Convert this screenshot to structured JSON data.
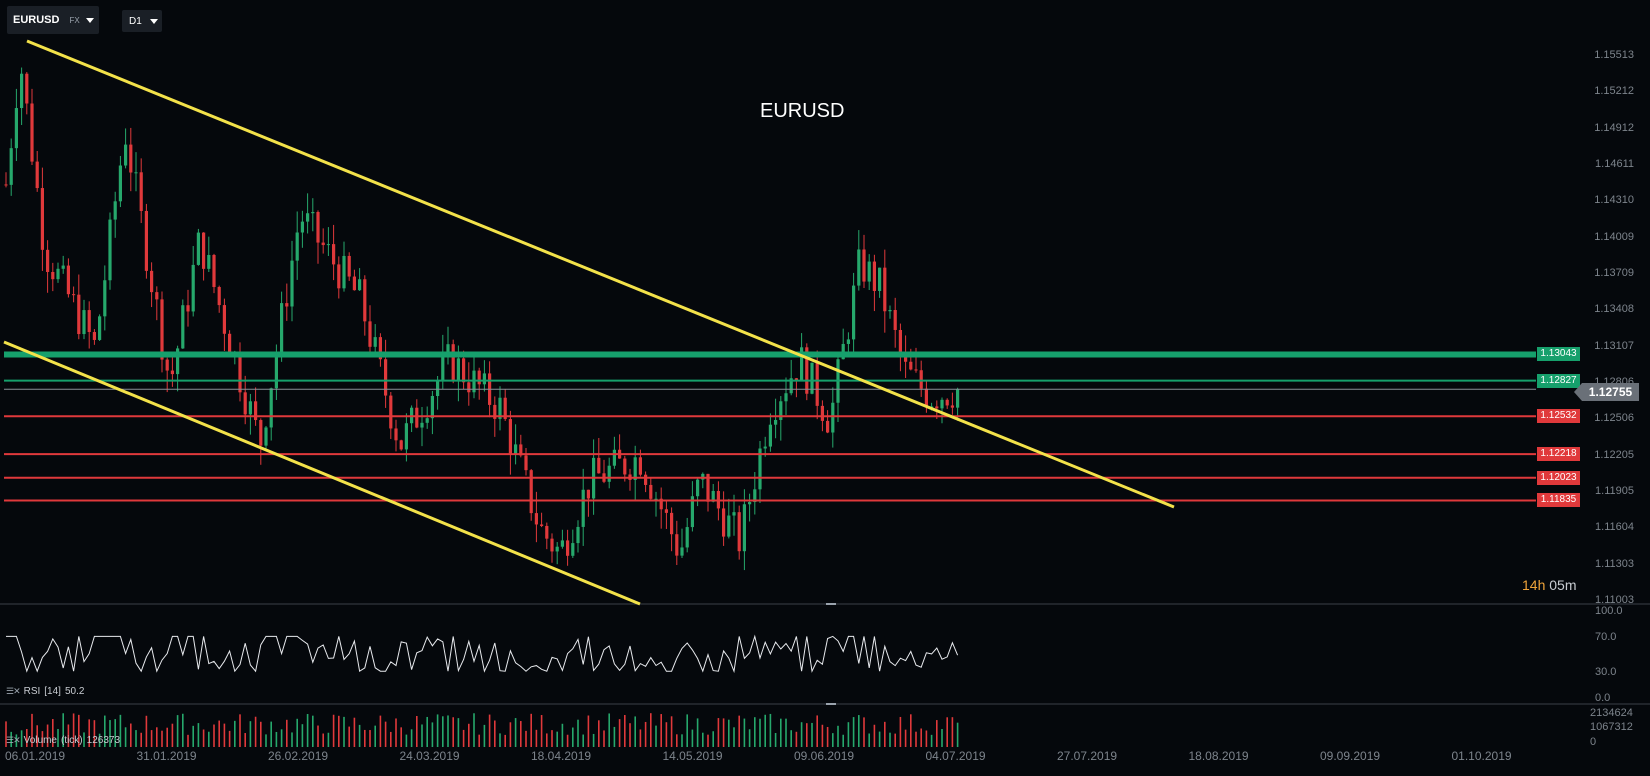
{
  "toolbar": {
    "symbol": "EURUSD",
    "market": "FX",
    "timeframe": "D1"
  },
  "title": "EURUSD",
  "price_axis": [
    "1.15513",
    "1.15212",
    "1.14912",
    "1.14611",
    "1.14310",
    "1.14009",
    "1.13709",
    "1.13408",
    "1.13107",
    "1.12806",
    "1.12506",
    "1.12205",
    "1.11905",
    "1.11604",
    "1.11303",
    "1.11003"
  ],
  "current_price": "1.12755",
  "timer": {
    "hours": "14h",
    "minutes": "05m"
  },
  "levels": [
    {
      "value": "1.13043",
      "kind": "green",
      "thick": true
    },
    {
      "value": "1.12827",
      "kind": "green",
      "thick": false
    },
    {
      "value": "1.12532",
      "kind": "red",
      "thick": false
    },
    {
      "value": "1.12218",
      "kind": "red",
      "thick": false
    },
    {
      "value": "1.12023",
      "kind": "red",
      "thick": false
    },
    {
      "value": "1.11835",
      "kind": "red",
      "thick": false
    }
  ],
  "dates": [
    "06.01.2019",
    "31.01.2019",
    "26.02.2019",
    "24.03.2019",
    "18.04.2019",
    "14.05.2019",
    "09.06.2019",
    "04.07.2019",
    "27.07.2019",
    "18.08.2019",
    "09.09.2019",
    "01.10.2019"
  ],
  "rsi": {
    "label": "RSI",
    "period": "[14]",
    "value": "50.2",
    "axis": [
      "100.0",
      "70.0",
      "30.0",
      "0.0"
    ]
  },
  "volume": {
    "label": "Volume",
    "type": "(tick)",
    "value": "126373",
    "axis": [
      "2134624",
      "1067312",
      "0"
    ]
  },
  "colors": {
    "up": "#26a86c",
    "down": "#e0393b",
    "trend": "#f3e24a",
    "support_green": "#16a06c",
    "level_red": "#e0393b",
    "background": "#05080c"
  }
}
